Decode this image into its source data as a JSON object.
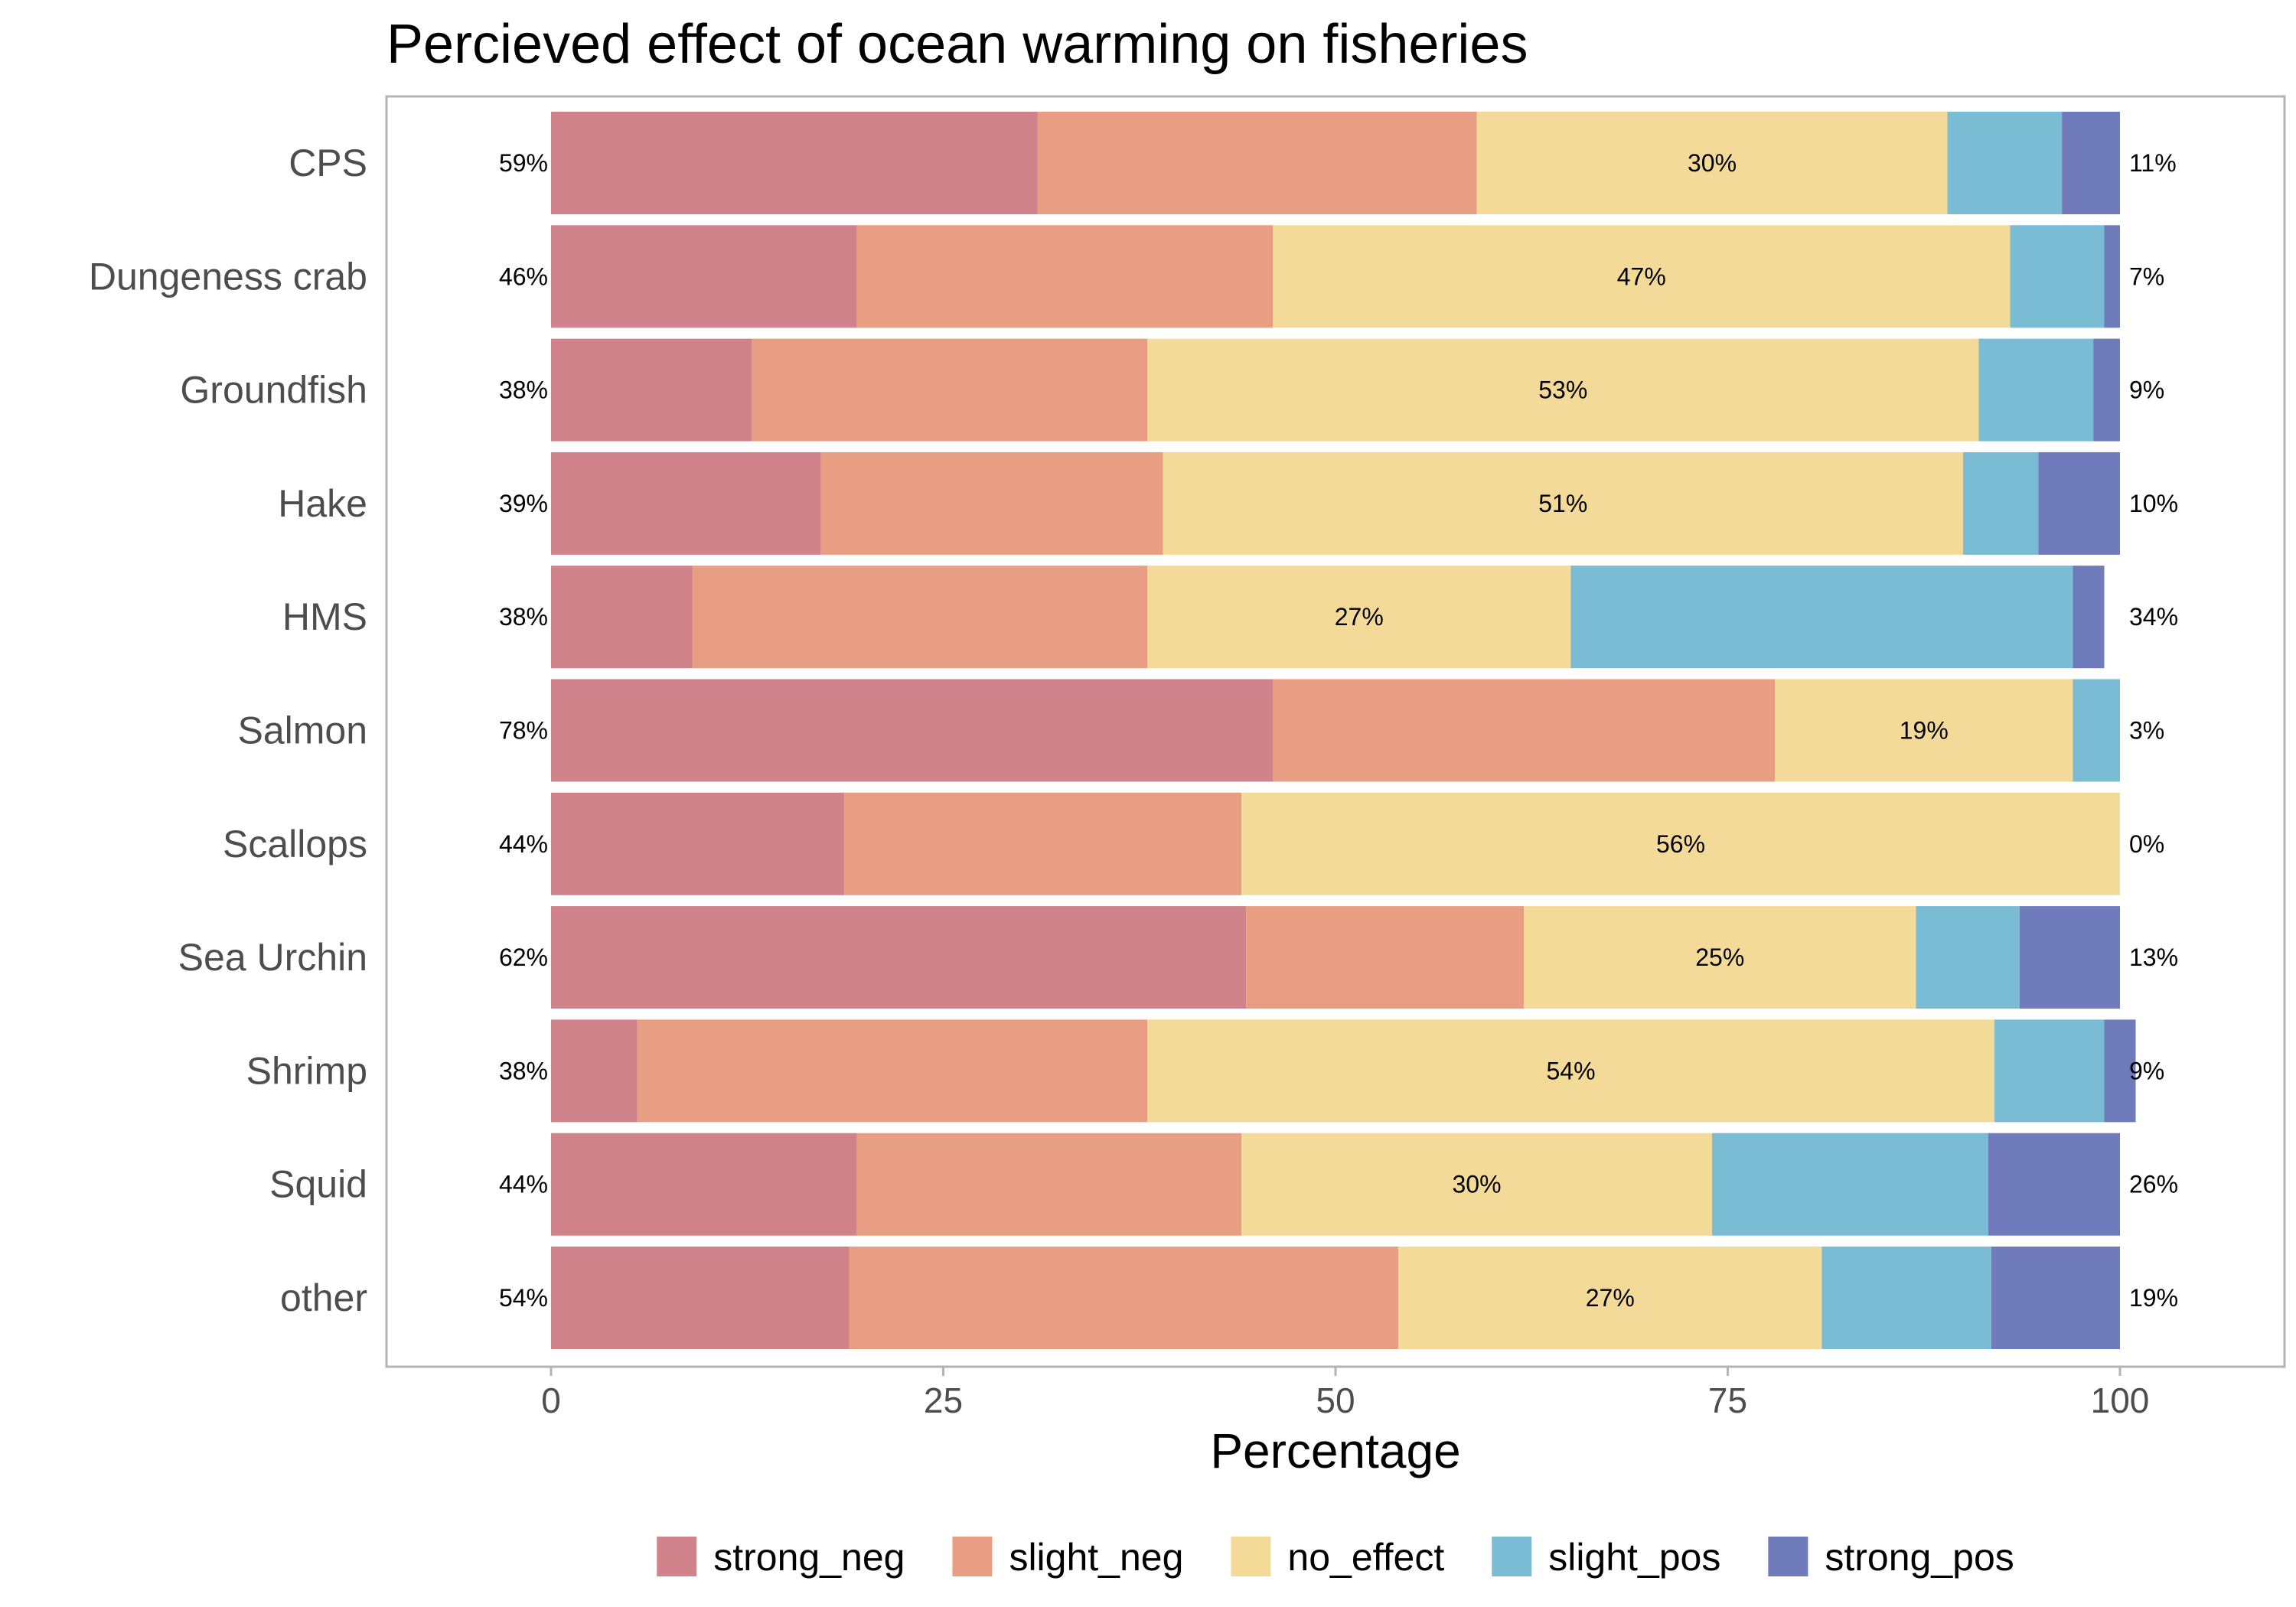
{
  "chart_data": {
    "type": "bar",
    "orientation": "horizontal",
    "stacked": true,
    "title": "Percieved effect of ocean warming on fisheries",
    "xlabel": "Percentage",
    "ylabel": "",
    "xlim": [
      0,
      100
    ],
    "xticks": [
      "0",
      "25",
      "50",
      "75",
      "100"
    ],
    "grid": false,
    "legend_position": "bottom",
    "categories": [
      "CPS",
      "Dungeness crab",
      "Groundfish",
      "Hake",
      "HMS",
      "Salmon",
      "Scallops",
      "Sea Urchin",
      "Shrimp",
      "Squid",
      "other"
    ],
    "series": [
      {
        "name": "strong_neg",
        "color": "#d0838a",
        "values": [
          31,
          19.5,
          12.8,
          17.2,
          9,
          46,
          18.7,
          44.3,
          5.5,
          19.5,
          19
        ]
      },
      {
        "name": "slight_neg",
        "color": "#e89e83",
        "values": [
          28,
          26.5,
          25.2,
          21.8,
          29,
          32,
          25.3,
          17.7,
          32.5,
          24.5,
          35
        ]
      },
      {
        "name": "no_effect",
        "color": "#f3da98",
        "values": [
          30,
          47,
          53,
          51,
          27,
          19,
          56,
          25,
          54,
          30,
          27
        ]
      },
      {
        "name": "slight_pos",
        "color": "#7bbcd5",
        "values": [
          7.3,
          6,
          7.3,
          4.8,
          32,
          3,
          0,
          6.6,
          7,
          17.6,
          10.8
        ]
      },
      {
        "name": "strong_pos",
        "color": "#6f7bba",
        "values": [
          3.7,
          1,
          1.7,
          5.2,
          2,
          0,
          0,
          6.4,
          2,
          8.4,
          8.2
        ]
      }
    ],
    "neg_labels": [
      "59%",
      "46%",
      "38%",
      "39%",
      "38%",
      "78%",
      "44%",
      "62%",
      "38%",
      "44%",
      "54%"
    ],
    "mid_labels": [
      "30%",
      "47%",
      "53%",
      "51%",
      "27%",
      "19%",
      "56%",
      "25%",
      "54%",
      "30%",
      "27%"
    ],
    "pos_labels": [
      "11%",
      "7%",
      "9%",
      "10%",
      "34%",
      "3%",
      "0%",
      "13%",
      "9%",
      "26%",
      "19%"
    ]
  }
}
